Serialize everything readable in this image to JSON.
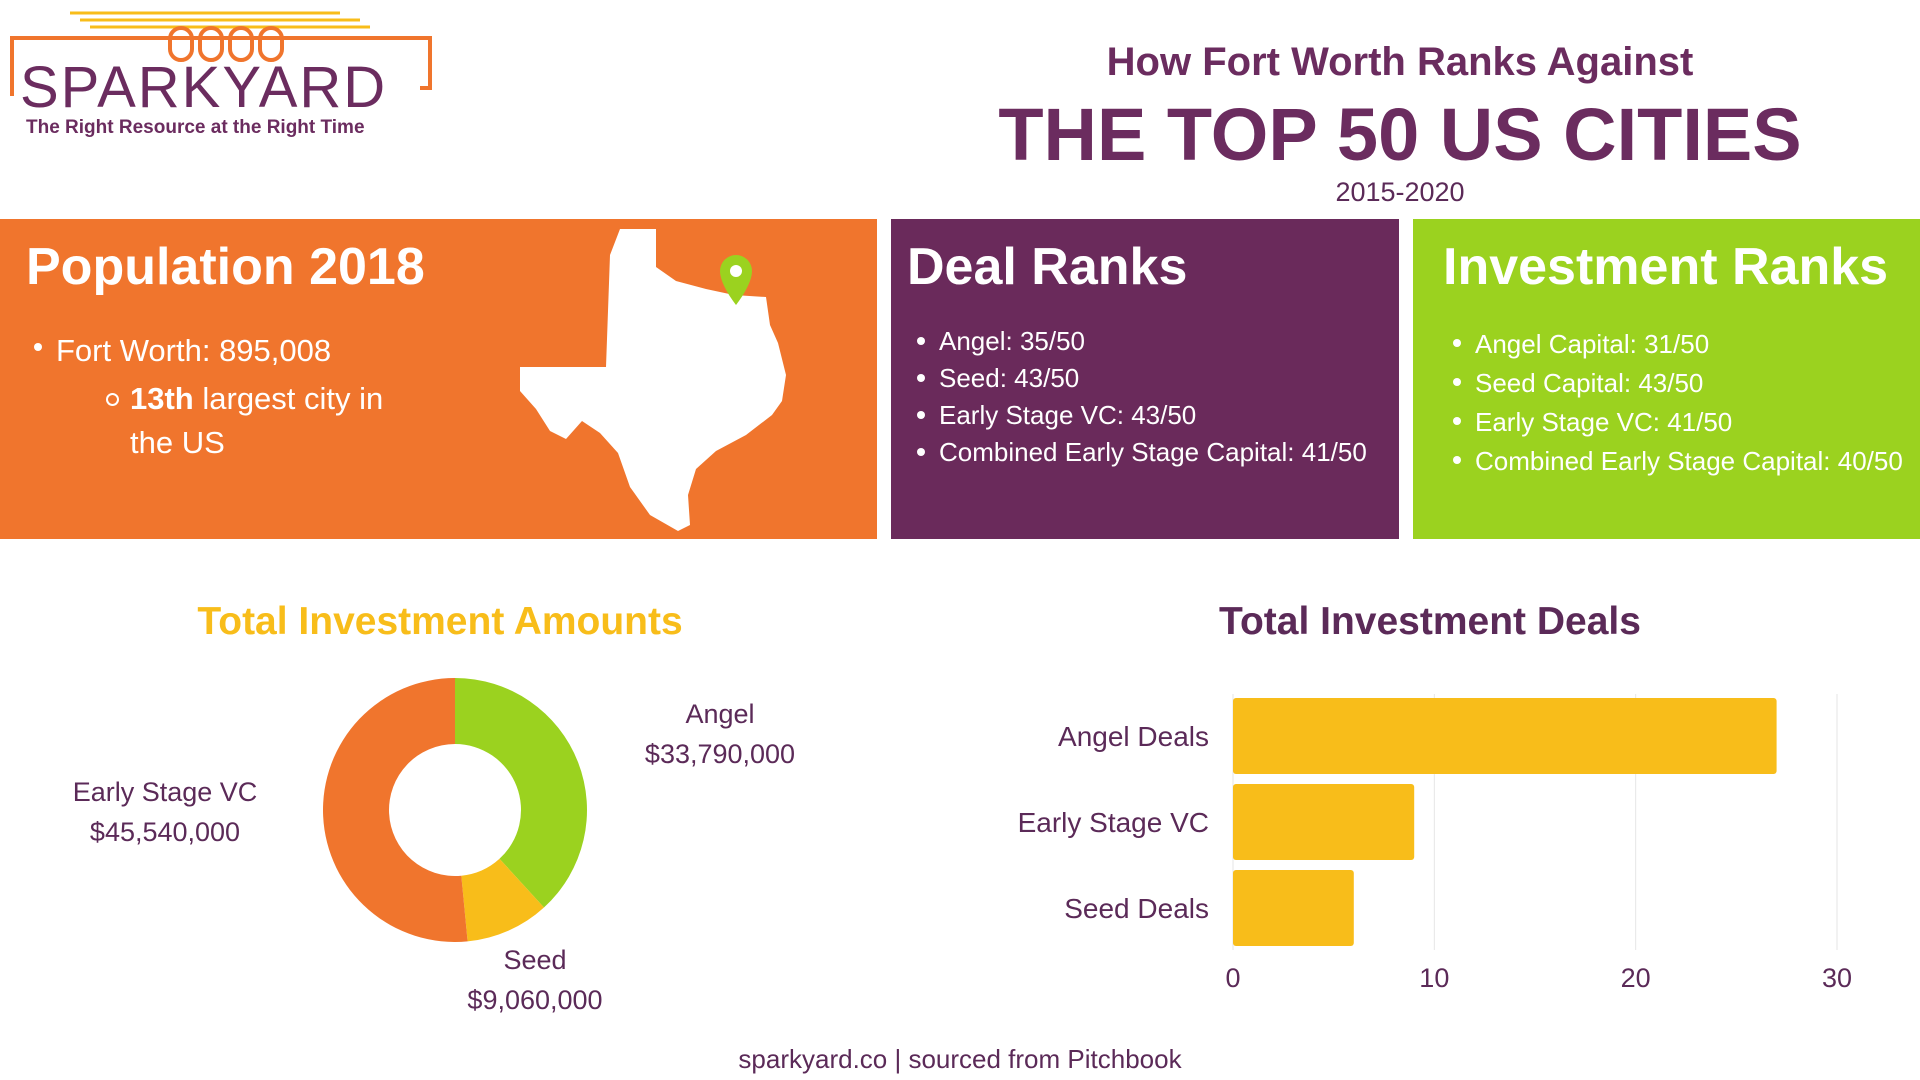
{
  "logo": {
    "word": "SPARKYARD",
    "tagline": "The Right Resource at the Right Time"
  },
  "header": {
    "subtitle": "How Fort Worth Ranks Against",
    "title": "THE TOP 50 US CITIES",
    "years": "2015-2020"
  },
  "population": {
    "title": "Population 2018",
    "item": "Fort Worth: 895,008",
    "sub_bold": "13th",
    "sub_rest": " largest city in the US"
  },
  "deal_ranks": {
    "title": "Deal Ranks",
    "items": [
      "Angel: 35/50",
      "Seed: 43/50",
      "Early Stage VC: 43/50",
      "Combined Early Stage Capital: 41/50"
    ]
  },
  "investment_ranks": {
    "title": "Investment Ranks",
    "items": [
      "Angel Capital: 31/50",
      "Seed Capital: 43/50",
      "Early Stage VC: 41/50",
      "Combined Early Stage Capital: 40/50"
    ]
  },
  "colors": {
    "orange": "#f0752d",
    "purple": "#6a2a5b",
    "green": "#9bd21f",
    "yellow": "#f8bd1a"
  },
  "icons": {
    "map": "texas-map-icon",
    "pin": "location-pin-icon"
  },
  "chart_data": [
    {
      "type": "pie",
      "title": "Total Investment Amounts",
      "slices": [
        {
          "label": "Angel",
          "value_label": "$33,790,000",
          "value": 33790000,
          "color": "#9bd21f"
        },
        {
          "label": "Seed",
          "value_label": "$9,060,000",
          "value": 9060000,
          "color": "#f8bd1a"
        },
        {
          "label": "Early Stage VC",
          "value_label": "$45,540,000",
          "value": 45540000,
          "color": "#f0752d"
        }
      ]
    },
    {
      "type": "bar",
      "orientation": "horizontal",
      "title": "Total Investment Deals",
      "categories": [
        "Angel Deals",
        "Early Stage VC",
        "Seed Deals"
      ],
      "values": [
        27,
        9,
        6
      ],
      "xlim": [
        0,
        30
      ],
      "xticks": [
        "0",
        "10",
        "20",
        "30"
      ],
      "color": "#f8bd1a",
      "grid": true
    }
  ],
  "footer": "sparkyard.co | sourced from Pitchbook"
}
